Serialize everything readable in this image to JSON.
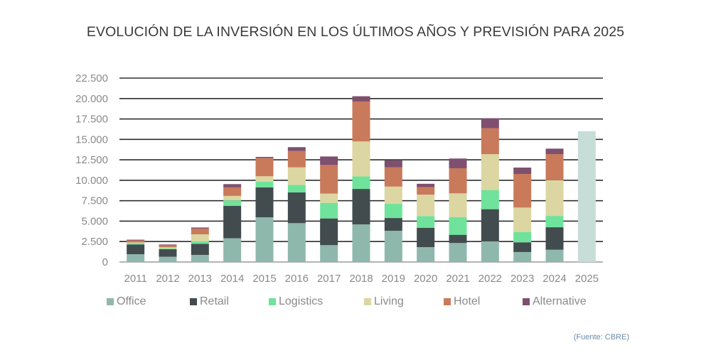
{
  "chart_data": {
    "type": "bar",
    "stacked": true,
    "title": "EVOLUCIÓN DE LA INVERSIÓN EN LOS ÚLTIMOS AÑOS Y PREVISIÓN PARA 2025",
    "xlabel": "",
    "ylabel": "",
    "ylim": [
      0,
      22500
    ],
    "yticks": [
      0,
      2500,
      5000,
      7500,
      10000,
      12500,
      15000,
      17500,
      20000,
      22500
    ],
    "ytick_labels": [
      "0",
      "2.500",
      "5.000",
      "7.500",
      "10.000",
      "12.500",
      "15.000",
      "17.500",
      "20.000",
      "22.500"
    ],
    "grid": true,
    "legend_position": "bottom",
    "categories": [
      "2011",
      "2012",
      "2013",
      "2014",
      "2015",
      "2016",
      "2017",
      "2018",
      "2019",
      "2020",
      "2021",
      "2022",
      "2023",
      "2024",
      "2025"
    ],
    "series": [
      {
        "name": "Office",
        "color": "#8fb8ac",
        "values": [
          950,
          640,
          870,
          2900,
          5470,
          4750,
          2060,
          4600,
          3820,
          1820,
          2320,
          2520,
          1220,
          1500,
          null
        ]
      },
      {
        "name": "Retail",
        "color": "#424c4e",
        "values": [
          1200,
          920,
          1360,
          3970,
          3650,
          3760,
          3270,
          4340,
          1560,
          2370,
          1010,
          3940,
          1190,
          2750,
          null
        ]
      },
      {
        "name": "Logistics",
        "color": "#6fe39b",
        "values": [
          150,
          90,
          290,
          670,
          700,
          930,
          1910,
          1530,
          1740,
          1420,
          2170,
          2350,
          1240,
          1390,
          null
        ]
      },
      {
        "name": "Living",
        "color": "#dcd6a2",
        "values": [
          100,
          150,
          870,
          550,
          670,
          2140,
          1130,
          4280,
          2110,
          2630,
          2900,
          4380,
          3010,
          4370,
          null
        ]
      },
      {
        "name": "Hotel",
        "color": "#c97a5b",
        "values": [
          250,
          250,
          700,
          1040,
          2220,
          2000,
          3500,
          4890,
          2350,
          930,
          3070,
          3180,
          4110,
          3190,
          null
        ]
      },
      {
        "name": "Alternative",
        "color": "#7e4f6e",
        "values": [
          80,
          90,
          130,
          400,
          150,
          470,
          1040,
          640,
          840,
          400,
          1190,
          1220,
          780,
          670,
          null
        ]
      }
    ],
    "forecast": {
      "category": "2025",
      "value": 16000,
      "color": "#c6ddd8"
    },
    "source": "(Fuente: CBRE)"
  }
}
